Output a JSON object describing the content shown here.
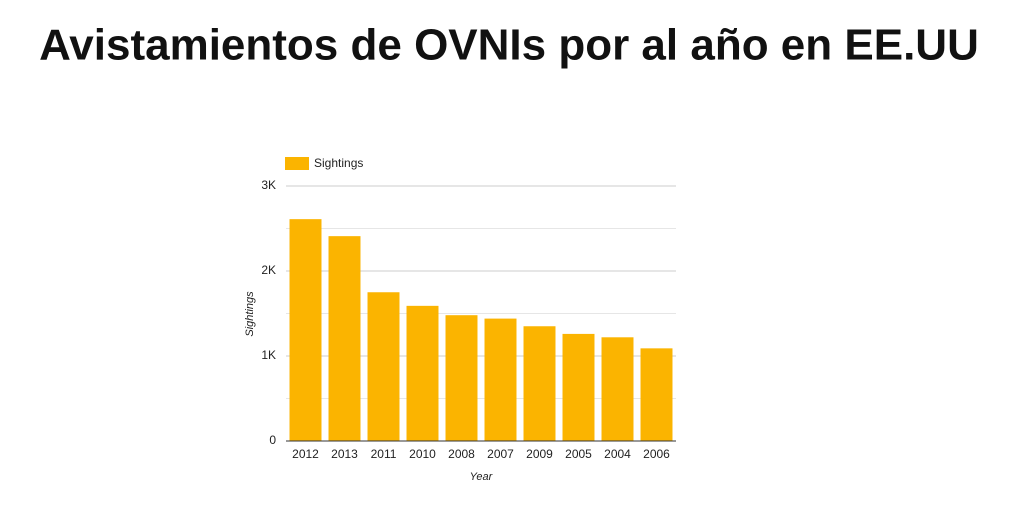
{
  "chart_data": {
    "type": "bar",
    "title": "Avistamientos de OVNIs por al año en EE.UU",
    "x_label": "Year",
    "y_label": "Sightings",
    "categories": [
      "2012",
      "2013",
      "2011",
      "2010",
      "2008",
      "2007",
      "2009",
      "2005",
      "2004",
      "2006"
    ],
    "series": [
      {
        "name": "Sightings",
        "color": "#fbb400",
        "values": [
          2610,
          2410,
          1750,
          1590,
          1480,
          1440,
          1350,
          1260,
          1220,
          1090
        ]
      }
    ],
    "ylim": [
      0,
      3000
    ],
    "yticks": [
      0,
      {
        "value": 1000,
        "label": "1K"
      },
      {
        "value": 2000,
        "label": "2K"
      },
      {
        "value": 3000,
        "label": "3K"
      }
    ],
    "minor_gridlines": [
      500,
      1500,
      2500
    ],
    "grid": true,
    "legend": "top-left"
  }
}
